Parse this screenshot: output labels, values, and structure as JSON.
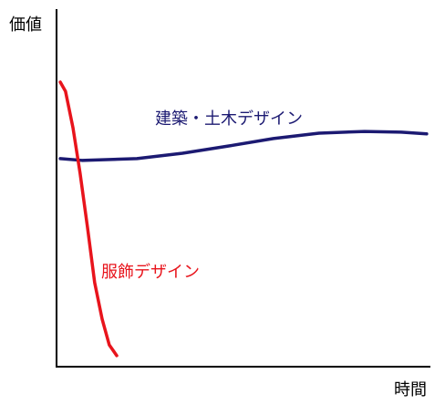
{
  "chart_data": {
    "type": "line",
    "ylabel": "価値",
    "xlabel": "時間",
    "xlim": [
      0,
      100
    ],
    "ylim": [
      0,
      100
    ],
    "series": [
      {
        "name": "建築・土木デザイン",
        "color": "#1c1a72",
        "x": [
          1,
          6.8,
          21.5,
          33.7,
          45.9,
          58,
          70.2,
          82.4,
          92.2,
          99
        ],
        "values": [
          58.2,
          57.7,
          58.2,
          59.7,
          61.7,
          63.8,
          65.3,
          65.8,
          65.6,
          65.1
        ]
      },
      {
        "name": "服飾デザイン",
        "color": "#e8141c",
        "x": [
          1,
          2.4,
          4.4,
          6.3,
          8.3,
          10.2,
          12.2,
          14.1,
          16.1
        ],
        "values": [
          79.6,
          77.0,
          66.8,
          54.1,
          38.8,
          23.5,
          13.3,
          6.1,
          3.1
        ]
      }
    ]
  }
}
